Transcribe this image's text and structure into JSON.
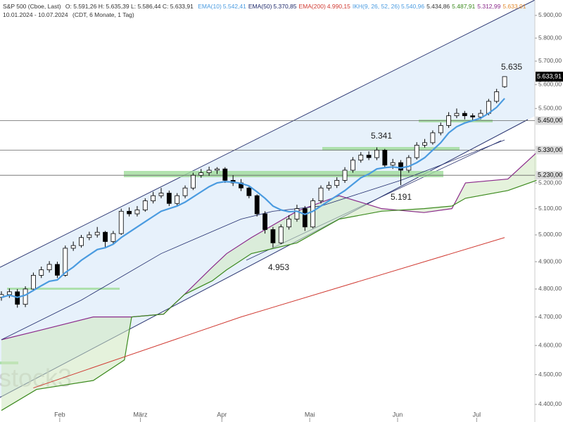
{
  "chart_data": {
    "type": "candlestick",
    "header": {
      "symbol": "S&P 500 (Cboe, Last)",
      "ohlc": "O: 5.591,26  H: 5.635,39  L: 5.586,44  C: 5.633,91",
      "indicators": [
        {
          "name": "EMA(10)",
          "values": [
            {
              "text": "5.542,41",
              "color": "#4a9be0"
            }
          ],
          "color": "#4a9be0"
        },
        {
          "name": "EMA(50)",
          "values": [
            {
              "text": "5.370,85",
              "color": "#1f2a6b"
            }
          ],
          "color": "#1f2a6b"
        },
        {
          "name": "EMA(200)",
          "values": [
            {
              "text": "4.990,15",
              "color": "#d03a32"
            }
          ],
          "color": "#d03a32"
        },
        {
          "name": "IKH(9, 26, 52, 26)",
          "values": [
            {
              "text": "5.540,96",
              "color": "#4a9be0"
            },
            {
              "text": "5.434,86",
              "color": "#333333"
            },
            {
              "text": "5.487,91",
              "color": "#3c8a1e"
            },
            {
              "text": "5.312,99",
              "color": "#8b2a8b"
            },
            {
              "text": "5.633,91",
              "color": "#e08a30"
            }
          ],
          "color": "#4a9be0"
        }
      ],
      "range": "10.01.2024 - 10.07.2024",
      "settings": "(CDT, 6 Monate, 1 Tag)"
    },
    "watermark": "stock3",
    "log_scale": true,
    "ylim": [
      4342,
      5969
    ],
    "yticks": [
      {
        "value": 5900,
        "label": "5.900,00"
      },
      {
        "value": 5800,
        "label": "5.800,00"
      },
      {
        "value": 5700,
        "label": "5.700,00"
      },
      {
        "value": 5600,
        "label": "5.600,00"
      },
      {
        "value": 5500,
        "label": "5.500,00"
      },
      {
        "value": 5200,
        "label": "5.200,00"
      },
      {
        "value": 5100,
        "label": "5.100,00"
      },
      {
        "value": 5000,
        "label": "5.000,00"
      },
      {
        "value": 4900,
        "label": "4.900,00"
      },
      {
        "value": 4800,
        "label": "4.800,00"
      },
      {
        "value": 4700,
        "label": "4.700,00"
      },
      {
        "value": 4600,
        "label": "4.600,00"
      },
      {
        "value": 4500,
        "label": "4.500,00"
      },
      {
        "value": 4400,
        "label": "4.400,00"
      }
    ],
    "xticks": [
      {
        "value": 7.3,
        "label": "Feb"
      },
      {
        "value": 17.4,
        "label": "März"
      },
      {
        "value": 27.6,
        "label": "Apr"
      },
      {
        "value": 38.6,
        "label": "Mai"
      },
      {
        "value": 49.6,
        "label": "Jun"
      },
      {
        "value": 59.5,
        "label": "Jul"
      }
    ],
    "levels": [
      {
        "value": 5450,
        "label": "5.450,00"
      },
      {
        "value": 5330,
        "label": "5.330,00"
      },
      {
        "value": 5230,
        "label": "5.230,00"
      }
    ],
    "last_price": {
      "value": 5633.91,
      "label": "5.633,91"
    },
    "annotations": [
      "5.635",
      "5.341",
      "5.191",
      "4.953"
    ],
    "candles": [
      [
        4770,
        4792,
        4758,
        4780
      ],
      [
        4780,
        4802,
        4768,
        4790
      ],
      [
        4790,
        4800,
        4733,
        4745
      ],
      [
        4745,
        4810,
        4735,
        4800
      ],
      [
        4800,
        4860,
        4792,
        4850
      ],
      [
        4850,
        4882,
        4840,
        4870
      ],
      [
        4870,
        4902,
        4860,
        4890
      ],
      [
        4890,
        4900,
        4840,
        4850
      ],
      [
        4850,
        4960,
        4845,
        4950
      ],
      [
        4950,
        4975,
        4940,
        4960
      ],
      [
        4960,
        5000,
        4952,
        4990
      ],
      [
        4990,
        5012,
        4980,
        5000
      ],
      [
        5000,
        5030,
        4990,
        5010
      ],
      [
        5010,
        5015,
        4950,
        4975
      ],
      [
        4975,
        5015,
        4965,
        5005
      ],
      [
        5005,
        5100,
        5000,
        5090
      ],
      [
        5090,
        5105,
        5070,
        5080
      ],
      [
        5080,
        5110,
        5070,
        5095
      ],
      [
        5095,
        5140,
        5088,
        5130
      ],
      [
        5130,
        5165,
        5120,
        5150
      ],
      [
        5150,
        5180,
        5140,
        5160
      ],
      [
        5160,
        5170,
        5110,
        5120
      ],
      [
        5120,
        5160,
        5112,
        5150
      ],
      [
        5150,
        5190,
        5140,
        5180
      ],
      [
        5180,
        5240,
        5172,
        5230
      ],
      [
        5230,
        5255,
        5220,
        5240
      ],
      [
        5240,
        5264,
        5228,
        5250
      ],
      [
        5250,
        5262,
        5235,
        5255
      ],
      [
        5255,
        5262,
        5200,
        5210
      ],
      [
        5210,
        5230,
        5188,
        5200
      ],
      [
        5200,
        5215,
        5168,
        5180
      ],
      [
        5180,
        5190,
        5140,
        5150
      ],
      [
        5150,
        5155,
        5070,
        5080
      ],
      [
        5080,
        5090,
        5005,
        5020
      ],
      [
        5020,
        5030,
        4953,
        4970
      ],
      [
        4970,
        5040,
        4965,
        5030
      ],
      [
        5030,
        5075,
        5020,
        5060
      ],
      [
        5060,
        5115,
        5050,
        5100
      ],
      [
        5100,
        5110,
        5015,
        5030
      ],
      [
        5030,
        5140,
        5025,
        5130
      ],
      [
        5130,
        5190,
        5120,
        5180
      ],
      [
        5180,
        5205,
        5170,
        5190
      ],
      [
        5190,
        5222,
        5180,
        5210
      ],
      [
        5210,
        5262,
        5200,
        5250
      ],
      [
        5250,
        5302,
        5240,
        5290
      ],
      [
        5290,
        5322,
        5280,
        5310
      ],
      [
        5310,
        5325,
        5290,
        5300
      ],
      [
        5300,
        5341,
        5290,
        5330
      ],
      [
        5330,
        5335,
        5260,
        5270
      ],
      [
        5270,
        5295,
        5255,
        5280
      ],
      [
        5280,
        5290,
        5191,
        5250
      ],
      [
        5250,
        5310,
        5240,
        5300
      ],
      [
        5300,
        5362,
        5292,
        5350
      ],
      [
        5350,
        5375,
        5340,
        5360
      ],
      [
        5360,
        5410,
        5352,
        5400
      ],
      [
        5400,
        5442,
        5390,
        5430
      ],
      [
        5430,
        5485,
        5420,
        5470
      ],
      [
        5470,
        5500,
        5460,
        5480
      ],
      [
        5480,
        5490,
        5455,
        5470
      ],
      [
        5470,
        5480,
        5450,
        5465
      ],
      [
        5465,
        5495,
        5455,
        5480
      ],
      [
        5480,
        5540,
        5472,
        5530
      ],
      [
        5530,
        5582,
        5522,
        5570
      ],
      [
        5591.26,
        5635.39,
        5586.44,
        5633.91
      ]
    ],
    "ema10": {
      "color": "#4a9be0",
      "values": [
        4770,
        4778,
        4770,
        4778,
        4795,
        4812,
        4828,
        4833,
        4860,
        4880,
        4905,
        4925,
        4945,
        4952,
        4965,
        4990,
        5010,
        5030,
        5050,
        5070,
        5090,
        5100,
        5110,
        5125,
        5145,
        5165,
        5185,
        5200,
        5205,
        5203,
        5198,
        5188,
        5165,
        5140,
        5110,
        5095,
        5088,
        5090,
        5078,
        5090,
        5110,
        5130,
        5150,
        5170,
        5195,
        5220,
        5235,
        5255,
        5260,
        5263,
        5259,
        5265,
        5280,
        5300,
        5330,
        5360,
        5400,
        5425,
        5440,
        5450,
        5460,
        5480,
        5505,
        5542
      ]
    },
    "ema50": {
      "color": "#1f2a6b",
      "x": [
        0,
        10,
        20,
        30,
        34,
        40,
        45,
        50,
        55,
        63
      ],
      "values": [
        4620,
        4760,
        4930,
        5060,
        5090,
        5110,
        5160,
        5210,
        5270,
        5371
      ]
    },
    "ema200": {
      "color": "#d03a32",
      "x": [
        4,
        30,
        63
      ],
      "values": [
        4455,
        4700,
        4990
      ]
    },
    "cloud": {
      "color_a": "#8b2a8b",
      "color_b": "#3c8a1e",
      "fill": "#cfe8bf",
      "x": [
        0,
        4.4,
        11.5,
        15.4,
        16.3,
        20.3,
        22.9,
        26.4,
        28.2,
        31.3,
        37,
        42.3,
        47.6,
        52.9,
        56.4,
        58.1,
        63.4,
        67
      ],
      "span_a": [
        4620,
        4650,
        4700,
        4700,
        4700,
        4710,
        4780,
        4880,
        4930,
        4990,
        5090,
        5150,
        5100,
        5085,
        5100,
        5200,
        5215,
        5320
      ],
      "span_b": [
        4380,
        4450,
        4480,
        4550,
        4700,
        4710,
        4780,
        4830,
        4870,
        4930,
        4970,
        5060,
        5090,
        5100,
        5110,
        5140,
        5170,
        5210
      ]
    }
  }
}
